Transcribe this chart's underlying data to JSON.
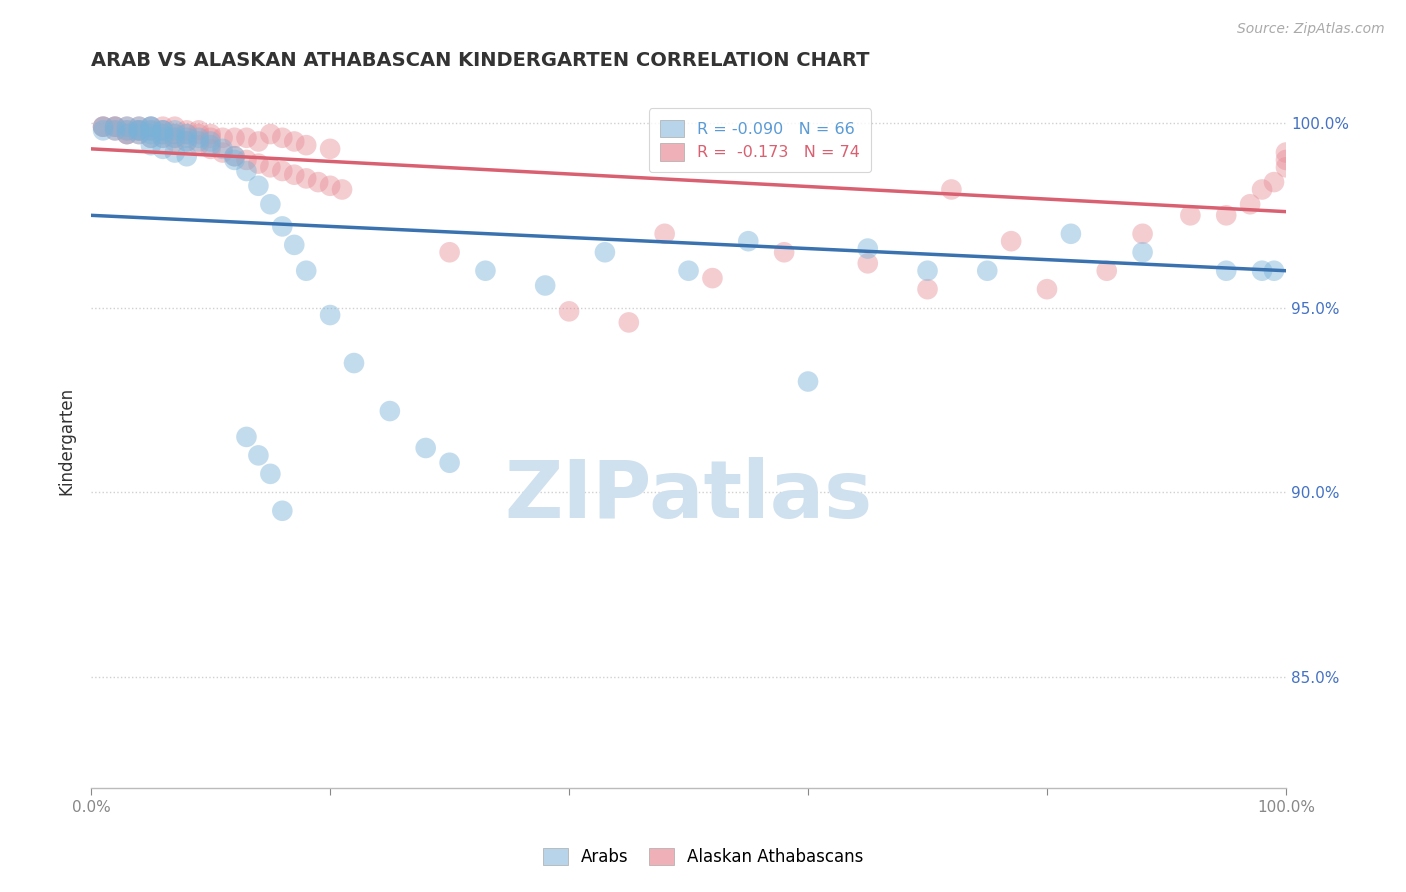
{
  "title": "ARAB VS ALASKAN ATHABASCAN KINDERGARTEN CORRELATION CHART",
  "source_text": "Source: ZipAtlas.com",
  "ylabel": "Kindergarten",
  "xlim": [
    0.0,
    1.0
  ],
  "ylim": [
    0.82,
    1.008
  ],
  "ytick_vals": [
    0.85,
    0.9,
    0.95,
    1.0
  ],
  "ytick_labels": [
    "85.0%",
    "90.0%",
    "95.0%",
    "100.0%"
  ],
  "blue_color": "#7ab3d9",
  "pink_color": "#e8909a",
  "blue_line_color": "#3a72b0",
  "pink_line_color": "#d96070",
  "legend_blue_fill": "#b8d4ea",
  "legend_pink_fill": "#f0b0b8",
  "watermark_text": "ZIPatlas",
  "watermark_color": "#cfe0ee",
  "background_color": "#ffffff",
  "grid_color": "#d0d0d0",
  "blue_x": [
    0.01,
    0.01,
    0.02,
    0.02,
    0.03,
    0.03,
    0.03,
    0.04,
    0.04,
    0.04,
    0.04,
    0.05,
    0.05,
    0.05,
    0.05,
    0.05,
    0.06,
    0.06,
    0.06,
    0.06,
    0.07,
    0.07,
    0.07,
    0.08,
    0.08,
    0.08,
    0.09,
    0.09,
    0.1,
    0.1,
    0.11,
    0.12,
    0.12,
    0.13,
    0.14,
    0.15,
    0.16,
    0.17,
    0.18,
    0.2,
    0.22,
    0.25,
    0.28,
    0.3,
    0.33,
    0.38,
    0.43,
    0.5,
    0.55,
    0.6,
    0.65,
    0.7,
    0.75,
    0.82,
    0.88,
    0.95,
    0.98,
    0.99,
    0.05,
    0.06,
    0.07,
    0.08,
    0.13,
    0.14,
    0.15,
    0.16
  ],
  "blue_y": [
    0.999,
    0.998,
    0.999,
    0.998,
    0.999,
    0.998,
    0.997,
    0.999,
    0.998,
    0.998,
    0.997,
    0.999,
    0.999,
    0.998,
    0.997,
    0.996,
    0.998,
    0.998,
    0.997,
    0.996,
    0.998,
    0.997,
    0.996,
    0.997,
    0.996,
    0.995,
    0.996,
    0.995,
    0.995,
    0.994,
    0.993,
    0.991,
    0.99,
    0.987,
    0.983,
    0.978,
    0.972,
    0.967,
    0.96,
    0.948,
    0.935,
    0.922,
    0.912,
    0.908,
    0.96,
    0.956,
    0.965,
    0.96,
    0.968,
    0.93,
    0.966,
    0.96,
    0.96,
    0.97,
    0.965,
    0.96,
    0.96,
    0.96,
    0.994,
    0.993,
    0.992,
    0.991,
    0.915,
    0.91,
    0.905,
    0.895
  ],
  "pink_x": [
    0.01,
    0.01,
    0.02,
    0.02,
    0.02,
    0.03,
    0.03,
    0.03,
    0.04,
    0.04,
    0.05,
    0.05,
    0.06,
    0.06,
    0.07,
    0.07,
    0.08,
    0.08,
    0.09,
    0.09,
    0.1,
    0.1,
    0.11,
    0.12,
    0.13,
    0.14,
    0.15,
    0.16,
    0.17,
    0.18,
    0.2,
    0.3,
    0.4,
    0.45,
    0.48,
    0.52,
    0.58,
    0.65,
    0.7,
    0.72,
    0.77,
    0.8,
    0.85,
    0.88,
    0.92,
    0.95,
    0.97,
    0.98,
    0.99,
    1.0,
    1.0,
    1.0,
    0.03,
    0.04,
    0.04,
    0.05,
    0.06,
    0.06,
    0.07,
    0.07,
    0.08,
    0.09,
    0.1,
    0.11,
    0.12,
    0.13,
    0.14,
    0.15,
    0.16,
    0.17,
    0.18,
    0.19,
    0.2,
    0.21
  ],
  "pink_y": [
    0.999,
    0.999,
    0.999,
    0.999,
    0.998,
    0.999,
    0.998,
    0.997,
    0.999,
    0.998,
    0.999,
    0.998,
    0.999,
    0.998,
    0.999,
    0.997,
    0.998,
    0.997,
    0.998,
    0.997,
    0.997,
    0.996,
    0.996,
    0.996,
    0.996,
    0.995,
    0.997,
    0.996,
    0.995,
    0.994,
    0.993,
    0.965,
    0.949,
    0.946,
    0.97,
    0.958,
    0.965,
    0.962,
    0.955,
    0.982,
    0.968,
    0.955,
    0.96,
    0.97,
    0.975,
    0.975,
    0.978,
    0.982,
    0.984,
    0.988,
    0.99,
    0.992,
    0.997,
    0.998,
    0.997,
    0.996,
    0.997,
    0.996,
    0.996,
    0.995,
    0.995,
    0.994,
    0.993,
    0.992,
    0.991,
    0.99,
    0.989,
    0.988,
    0.987,
    0.986,
    0.985,
    0.984,
    0.983,
    0.982
  ]
}
